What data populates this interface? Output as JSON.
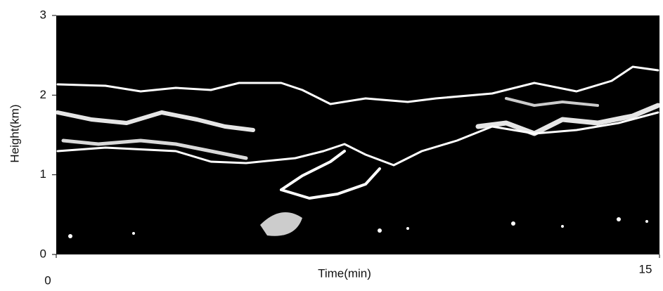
{
  "chart_data": {
    "type": "image",
    "x_label": "Time(min)",
    "y_label": "Height(km)",
    "xlim": [
      0,
      15
    ],
    "xticks": [
      0,
      15
    ],
    "ylim": [
      0,
      3
    ],
    "yticks": [
      0,
      1,
      2,
      3
    ]
  }
}
